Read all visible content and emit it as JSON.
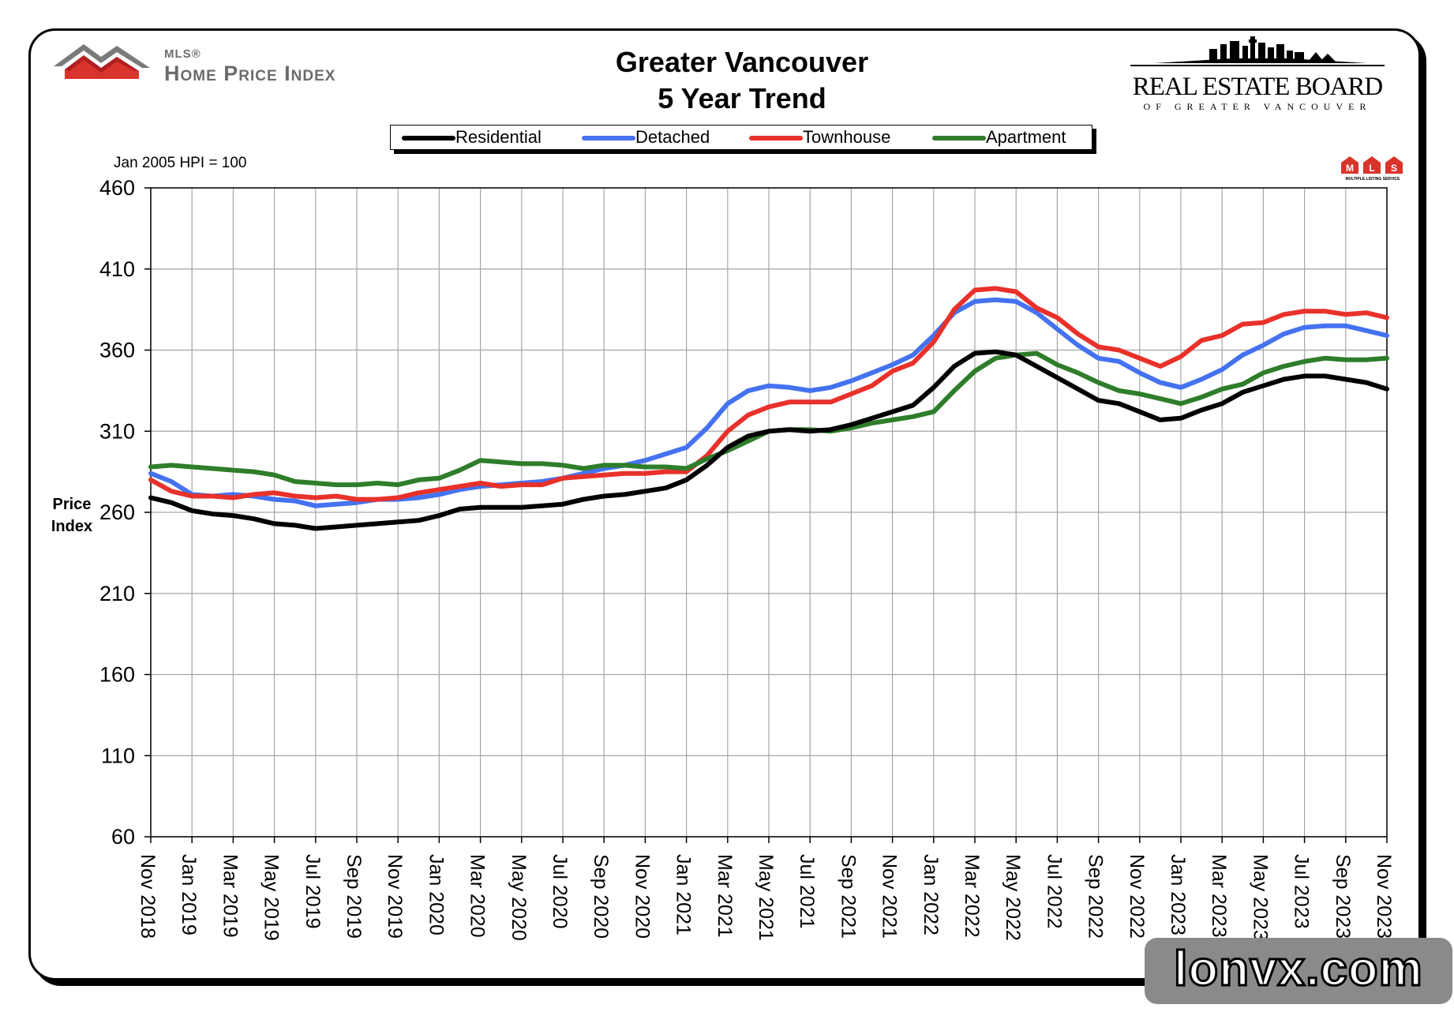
{
  "header": {
    "hpi_small": "MLS®",
    "hpi_big": "Home Price Index",
    "title_line1": "Greater Vancouver",
    "title_line2": "5 Year Trend",
    "board_name": "REAL ESTATE BOARD",
    "board_sub": "OF GREATER VANCOUVER",
    "base_note": "Jan 2005 HPI = 100",
    "mls_badge": "MLS",
    "mls_badge_sub": "MULTIPLE LISTING SERVICE"
  },
  "watermark": "lonvx.com",
  "colors": {
    "Residential": "#000000",
    "Detached": "#4472f0",
    "Townhouse": "#e8312a",
    "Apartment": "#2e7d2a",
    "grid": "#a6a6a6"
  },
  "chart_data": {
    "type": "line",
    "title": "Greater Vancouver 5 Year Trend",
    "ylabel": "Price Index",
    "xlabel": "",
    "ylim": [
      60,
      460
    ],
    "yticks": [
      60,
      110,
      160,
      210,
      260,
      310,
      360,
      410,
      460
    ],
    "grid": true,
    "legend_position": "top",
    "x": [
      "Nov 2018",
      "Dec 2018",
      "Jan 2019",
      "Feb 2019",
      "Mar 2019",
      "Apr 2019",
      "May 2019",
      "Jun 2019",
      "Jul 2019",
      "Aug 2019",
      "Sep 2019",
      "Oct 2019",
      "Nov 2019",
      "Dec 2019",
      "Jan 2020",
      "Feb 2020",
      "Mar 2020",
      "Apr 2020",
      "May 2020",
      "Jun 2020",
      "Jul 2020",
      "Aug 2020",
      "Sep 2020",
      "Oct 2020",
      "Nov 2020",
      "Dec 2020",
      "Jan 2021",
      "Feb 2021",
      "Mar 2021",
      "Apr 2021",
      "May 2021",
      "Jun 2021",
      "Jul 2021",
      "Aug 2021",
      "Sep 2021",
      "Oct 2021",
      "Nov 2021",
      "Dec 2021",
      "Jan 2022",
      "Feb 2022",
      "Mar 2022",
      "Apr 2022",
      "May 2022",
      "Jun 2022",
      "Jul 2022",
      "Aug 2022",
      "Sep 2022",
      "Oct 2022",
      "Nov 2022",
      "Dec 2022",
      "Jan 2023",
      "Feb 2023",
      "Mar 2023",
      "Apr 2023",
      "May 2023",
      "Jun 2023",
      "Jul 2023",
      "Aug 2023",
      "Sep 2023",
      "Oct 2023",
      "Nov 2023"
    ],
    "xtick_labels": [
      "Nov 2018",
      "Jan 2019",
      "Mar 2019",
      "May 2019",
      "Jul 2019",
      "Sep 2019",
      "Nov 2019",
      "Jan 2020",
      "Mar 2020",
      "May 2020",
      "Jul 2020",
      "Sep 2020",
      "Nov 2020",
      "Jan 2021",
      "Mar 2021",
      "May 2021",
      "Jul 2021",
      "Sep 2021",
      "Nov 2021",
      "Jan 2022",
      "Mar 2022",
      "May 2022",
      "Jul 2022",
      "Sep 2022",
      "Nov 2022",
      "Jan 2023",
      "Mar 2023",
      "May 2023",
      "Jul 2023",
      "Sep 2023",
      "Nov 2023"
    ],
    "series": [
      {
        "name": "Residential",
        "values": [
          269,
          266,
          261,
          259,
          258,
          256,
          253,
          252,
          250,
          251,
          252,
          253,
          254,
          255,
          258,
          262,
          263,
          263,
          263,
          264,
          265,
          268,
          270,
          271,
          273,
          275,
          280,
          289,
          300,
          307,
          310,
          311,
          310,
          311,
          314,
          318,
          322,
          326,
          337,
          350,
          358,
          359,
          357,
          350,
          343,
          336,
          329,
          327,
          322,
          317,
          318,
          323,
          327,
          334,
          338,
          342,
          344,
          344,
          342,
          340,
          336
        ]
      },
      {
        "name": "Detached",
        "values": [
          284,
          279,
          271,
          270,
          271,
          270,
          268,
          267,
          264,
          265,
          266,
          268,
          268,
          269,
          271,
          274,
          276,
          277,
          278,
          279,
          281,
          284,
          287,
          289,
          292,
          296,
          300,
          312,
          327,
          335,
          338,
          337,
          335,
          337,
          341,
          346,
          351,
          357,
          369,
          383,
          390,
          391,
          390,
          383,
          373,
          363,
          355,
          353,
          346,
          340,
          337,
          342,
          348,
          357,
          363,
          370,
          374,
          375,
          375,
          372,
          369
        ]
      },
      {
        "name": "Townhouse",
        "values": [
          280,
          273,
          270,
          270,
          269,
          271,
          272,
          270,
          269,
          270,
          268,
          268,
          269,
          272,
          274,
          276,
          278,
          276,
          277,
          277,
          281,
          282,
          283,
          284,
          284,
          285,
          285,
          295,
          310,
          320,
          325,
          328,
          328,
          328,
          333,
          338,
          347,
          352,
          365,
          385,
          397,
          398,
          396,
          386,
          380,
          370,
          362,
          360,
          355,
          350,
          356,
          366,
          369,
          376,
          377,
          382,
          384,
          384,
          382,
          383,
          380
        ]
      },
      {
        "name": "Apartment",
        "values": [
          288,
          289,
          288,
          287,
          286,
          285,
          283,
          279,
          278,
          277,
          277,
          278,
          277,
          280,
          281,
          286,
          292,
          291,
          290,
          290,
          289,
          287,
          289,
          289,
          288,
          288,
          287,
          293,
          298,
          304,
          310,
          311,
          311,
          310,
          312,
          315,
          317,
          319,
          322,
          335,
          347,
          355,
          357,
          358,
          351,
          346,
          340,
          335,
          333,
          330,
          327,
          331,
          336,
          339,
          346,
          350,
          353,
          355,
          354,
          354,
          355
        ]
      }
    ]
  }
}
